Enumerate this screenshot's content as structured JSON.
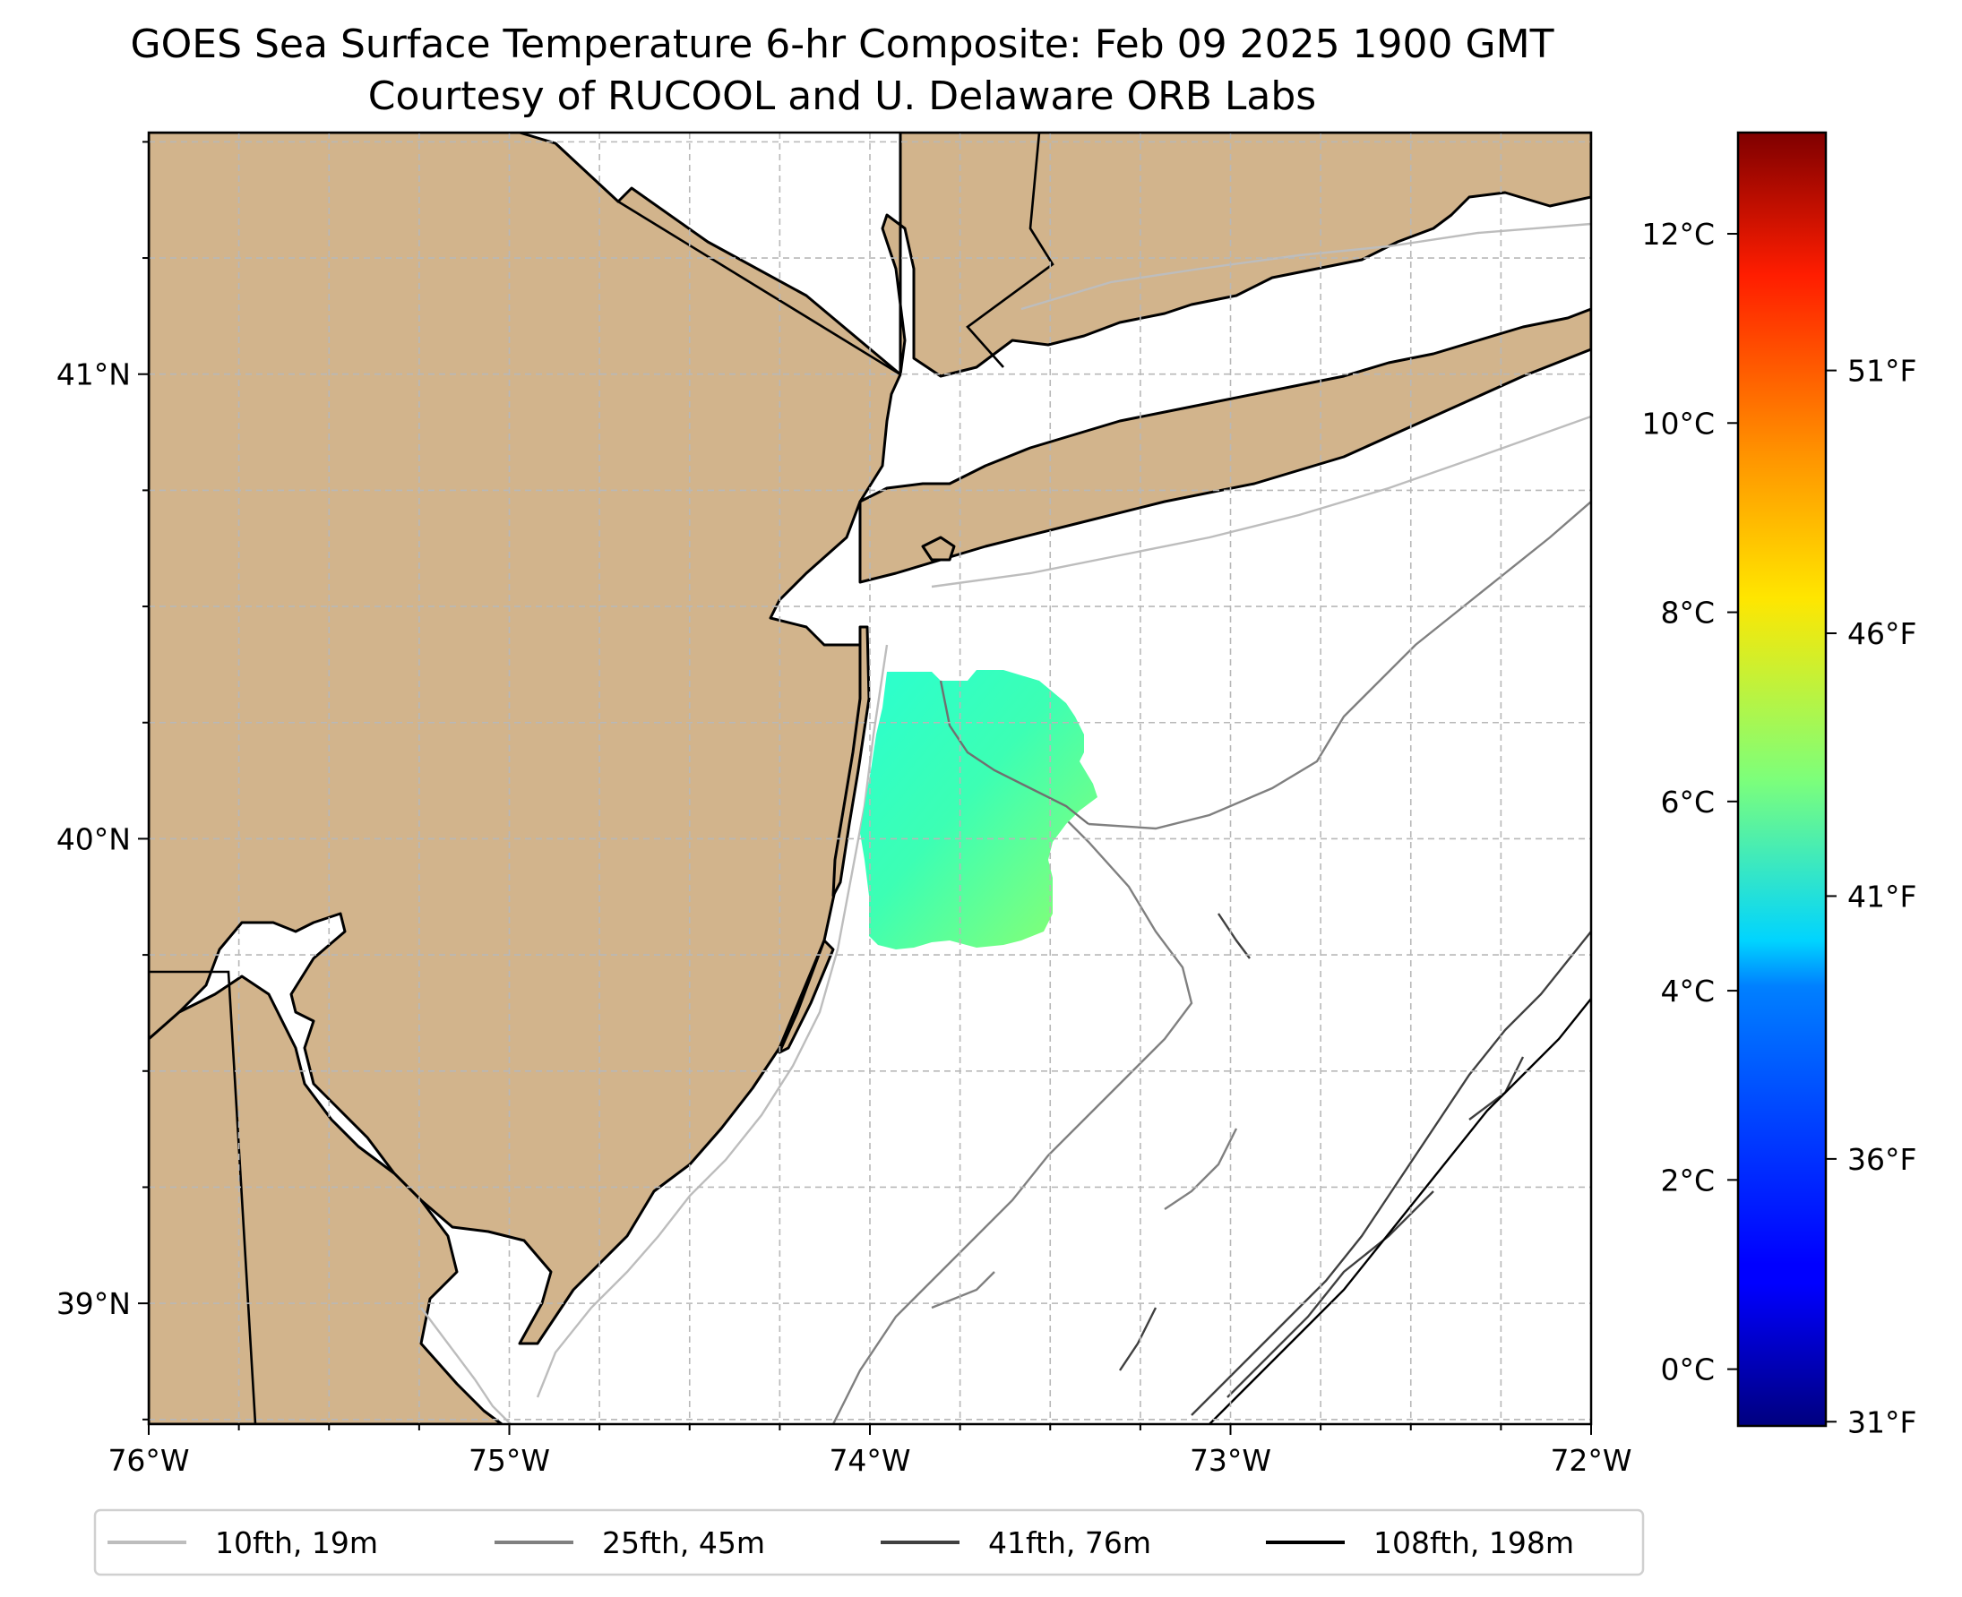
{
  "title": {
    "line1": "GOES Sea Surface Temperature 6-hr Composite: Feb 09 2025 1900 GMT",
    "line2": "Courtesy of RUCOOL and U. Delaware ORB Labs"
  },
  "map": {
    "lon_range": [
      -76,
      -72
    ],
    "lat_range": [
      38.74,
      41.52
    ],
    "x_ticks": [
      {
        "lon": -76,
        "label": "76°W"
      },
      {
        "lon": -75,
        "label": "75°W"
      },
      {
        "lon": -74,
        "label": "74°W"
      },
      {
        "lon": -73,
        "label": "73°W"
      },
      {
        "lon": -72,
        "label": "72°W"
      }
    ],
    "y_ticks": [
      {
        "lat": 41,
        "label": "41°N"
      },
      {
        "lat": 40,
        "label": "40°N"
      },
      {
        "lat": 39,
        "label": "39°N"
      }
    ],
    "land_color": "#d2b48c",
    "sst_patch_celsius_range": [
      4.8,
      6.6
    ]
  },
  "legend": {
    "items": [
      {
        "label": "10fth, 19m",
        "color": "#bdbdbd"
      },
      {
        "label": "25fth, 45m",
        "color": "#808080"
      },
      {
        "label": "41fth, 76m",
        "color": "#404040"
      },
      {
        "label": "108fth, 198m",
        "color": "#000000"
      }
    ]
  },
  "colorbar": {
    "colormap": "jet",
    "range_celsius": [
      -0.6,
      13.07
    ],
    "celsius_ticks": [
      {
        "value": 0,
        "label": "0°C"
      },
      {
        "value": 2,
        "label": "2°C"
      },
      {
        "value": 4,
        "label": "4°C"
      },
      {
        "value": 6,
        "label": "6°C"
      },
      {
        "value": 8,
        "label": "8°C"
      },
      {
        "value": 10,
        "label": "10°C"
      },
      {
        "value": 12,
        "label": "12°C"
      }
    ],
    "fahrenheit_ticks": [
      {
        "value": 31,
        "label": "31°F"
      },
      {
        "value": 36,
        "label": "36°F"
      },
      {
        "value": 41,
        "label": "41°F"
      },
      {
        "value": 46,
        "label": "46°F"
      },
      {
        "value": 51,
        "label": "51°F"
      }
    ]
  }
}
